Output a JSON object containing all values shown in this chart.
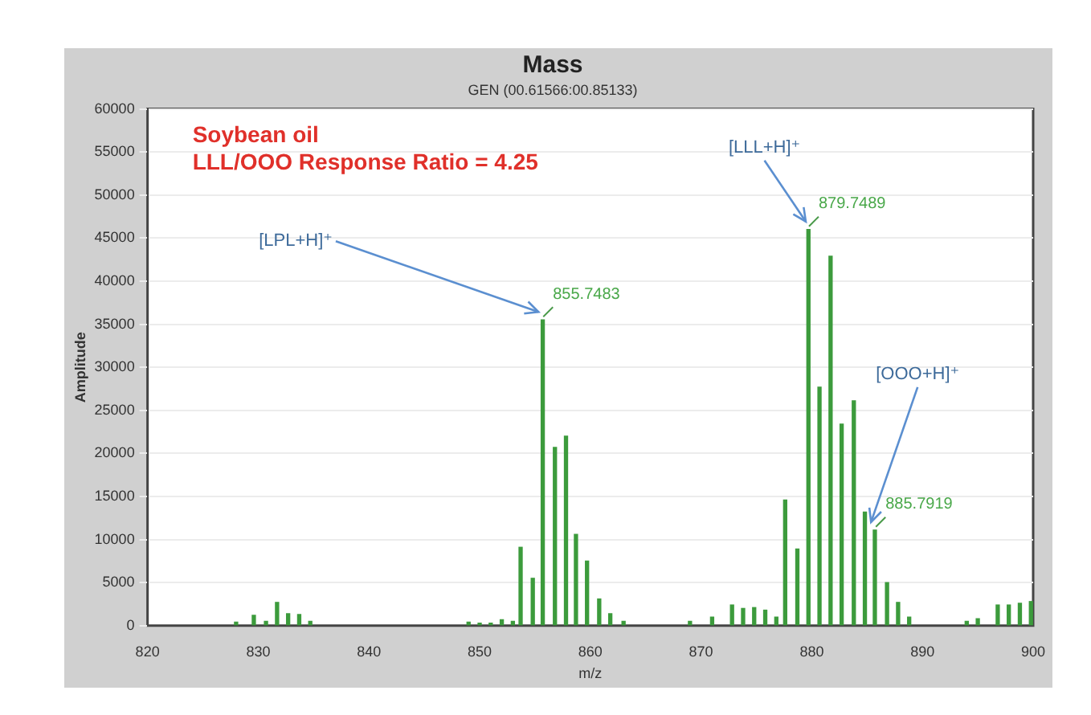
{
  "chart_data": {
    "type": "bar",
    "title": "Mass",
    "subtitle": "GEN (00.61566:00.85133)",
    "xlabel": "m/z",
    "ylabel": "Amplitude",
    "x": [
      828,
      829.6,
      830.7,
      831.7,
      832.7,
      833.7,
      834.7,
      849,
      850,
      851,
      852,
      853,
      853.7,
      854.8,
      855.7,
      856.8,
      857.8,
      858.7,
      859.7,
      860.8,
      861.8,
      863,
      869,
      871,
      872.8,
      873.8,
      874.8,
      875.8,
      876.8,
      877.6,
      878.7,
      879.7,
      880.7,
      881.7,
      882.7,
      883.8,
      884.8,
      885.7,
      886.8,
      887.8,
      888.8,
      894,
      895,
      896.8,
      897.8,
      898.8,
      899.8
    ],
    "values": [
      400,
      1200,
      500,
      2700,
      1400,
      1300,
      500,
      400,
      300,
      300,
      700,
      500,
      9100,
      5500,
      35500,
      20700,
      22000,
      10600,
      7500,
      3100,
      1400,
      500,
      500,
      1000,
      2400,
      2000,
      2100,
      1800,
      1000,
      14600,
      8900,
      46000,
      27700,
      42900,
      23400,
      26100,
      13200,
      11100,
      5000,
      2700,
      1000,
      500,
      800,
      2400,
      2400,
      2600,
      2800
    ],
    "color": "#3c9b3c",
    "xlim": [
      820,
      900
    ],
    "xticks": [
      820,
      830,
      840,
      850,
      860,
      870,
      880,
      890,
      900
    ],
    "ylim": [
      0,
      60000
    ],
    "yticks": [
      0,
      5000,
      10000,
      15000,
      20000,
      25000,
      30000,
      35000,
      40000,
      45000,
      50000,
      55000,
      60000
    ],
    "grid": "y",
    "annotations": [
      "Soybean oil",
      "LLL/OOO Response Ratio = 4.25",
      {
        "text": "855.7483",
        "x": 855.7483,
        "y": 35500
      },
      {
        "text": "879.7489",
        "x": 879.7489,
        "y": 46000
      },
      {
        "text": "885.7919",
        "x": 885.7919,
        "y": 11100
      },
      {
        "text": "[LPL+H]⁺",
        "x": 855.7483,
        "y": 35500
      },
      {
        "text": "[LLL+H]⁺",
        "x": 879.7489,
        "y": 46000
      },
      {
        "text": "[OOO+H]⁺",
        "x": 885.7919,
        "y": 11100
      }
    ]
  }
}
